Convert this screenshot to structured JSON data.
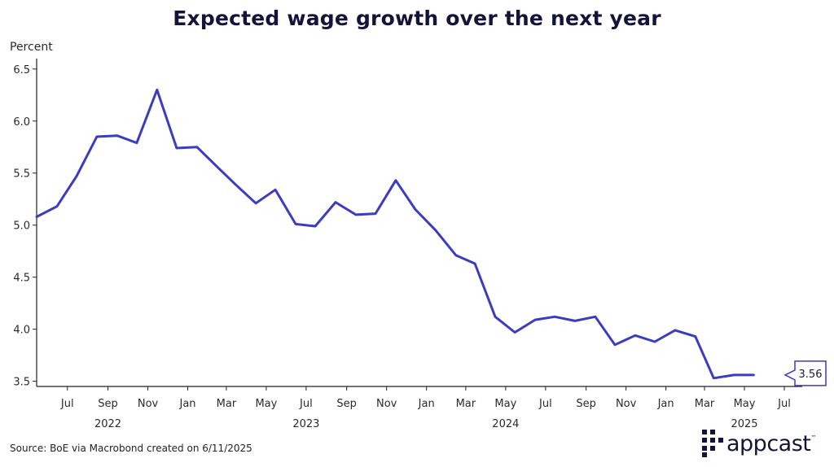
{
  "header": {
    "title": "Expected wage growth over the next year"
  },
  "footer": {
    "source": "Source: BoE via Macrobond created on 6/11/2025"
  },
  "logo": {
    "text": "appcast",
    "tm": "™"
  },
  "chart_data": {
    "type": "line",
    "title": "Expected wage growth over the next year",
    "ylabel": "Percent",
    "xlabel": "",
    "ylim": [
      3.45,
      6.6
    ],
    "yticks": [
      3.5,
      4.0,
      4.5,
      5.0,
      5.5,
      6.0,
      6.5
    ],
    "xlim": [
      "2022-05-15",
      "2025-07-01"
    ],
    "grid": false,
    "color": "#3a3cc1",
    "x_ticks": [
      {
        "date": "2022-07-01",
        "label": "Jul"
      },
      {
        "date": "2022-09-01",
        "label": "Sep"
      },
      {
        "date": "2022-11-01",
        "label": "Nov"
      },
      {
        "date": "2023-01-01",
        "label": "Jan"
      },
      {
        "date": "2023-03-01",
        "label": "Mar"
      },
      {
        "date": "2023-05-01",
        "label": "May"
      },
      {
        "date": "2023-07-01",
        "label": "Jul"
      },
      {
        "date": "2023-09-01",
        "label": "Sep"
      },
      {
        "date": "2023-11-01",
        "label": "Nov"
      },
      {
        "date": "2024-01-01",
        "label": "Jan"
      },
      {
        "date": "2024-03-01",
        "label": "Mar"
      },
      {
        "date": "2024-05-01",
        "label": "May"
      },
      {
        "date": "2024-07-01",
        "label": "Jul"
      },
      {
        "date": "2024-09-01",
        "label": "Sep"
      },
      {
        "date": "2024-11-01",
        "label": "Nov"
      },
      {
        "date": "2025-01-01",
        "label": "Jan"
      },
      {
        "date": "2025-03-01",
        "label": "Mar"
      },
      {
        "date": "2025-05-01",
        "label": "May"
      },
      {
        "date": "2025-07-01",
        "label": "Jul"
      }
    ],
    "year_labels": [
      {
        "date": "2022-09-01",
        "label": "2022"
      },
      {
        "date": "2023-07-01",
        "label": "2023"
      },
      {
        "date": "2024-05-01",
        "label": "2024"
      },
      {
        "date": "2025-05-01",
        "label": "2025"
      }
    ],
    "series": [
      {
        "x": [
          "2022-05-15",
          "2022-06-15",
          "2022-07-15",
          "2022-08-15",
          "2022-09-15",
          "2022-10-15",
          "2022-11-15",
          "2022-12-15",
          "2023-01-15",
          "2023-02-15",
          "2023-03-15",
          "2023-04-15",
          "2023-05-15",
          "2023-06-15",
          "2023-07-15",
          "2023-08-15",
          "2023-09-15",
          "2023-10-15",
          "2023-11-15",
          "2023-12-15",
          "2024-01-15",
          "2024-02-15",
          "2024-03-15",
          "2024-04-15",
          "2024-05-15",
          "2024-06-15",
          "2024-07-15",
          "2024-08-15",
          "2024-09-15",
          "2024-10-15",
          "2024-11-15",
          "2024-12-15",
          "2025-01-15",
          "2025-02-15",
          "2025-03-15",
          "2025-04-15",
          "2025-05-15"
        ],
        "values": [
          5.08,
          5.18,
          5.47,
          5.85,
          5.86,
          5.79,
          6.3,
          5.74,
          5.75,
          5.56,
          5.39,
          5.21,
          5.34,
          5.01,
          4.99,
          5.22,
          5.1,
          5.11,
          5.43,
          5.15,
          4.95,
          4.71,
          4.63,
          4.12,
          3.97,
          4.09,
          4.12,
          4.08,
          4.12,
          3.85,
          3.94,
          3.88,
          3.99,
          3.93,
          3.53,
          3.56,
          3.56
        ]
      }
    ],
    "last_value_label": "3.56"
  }
}
